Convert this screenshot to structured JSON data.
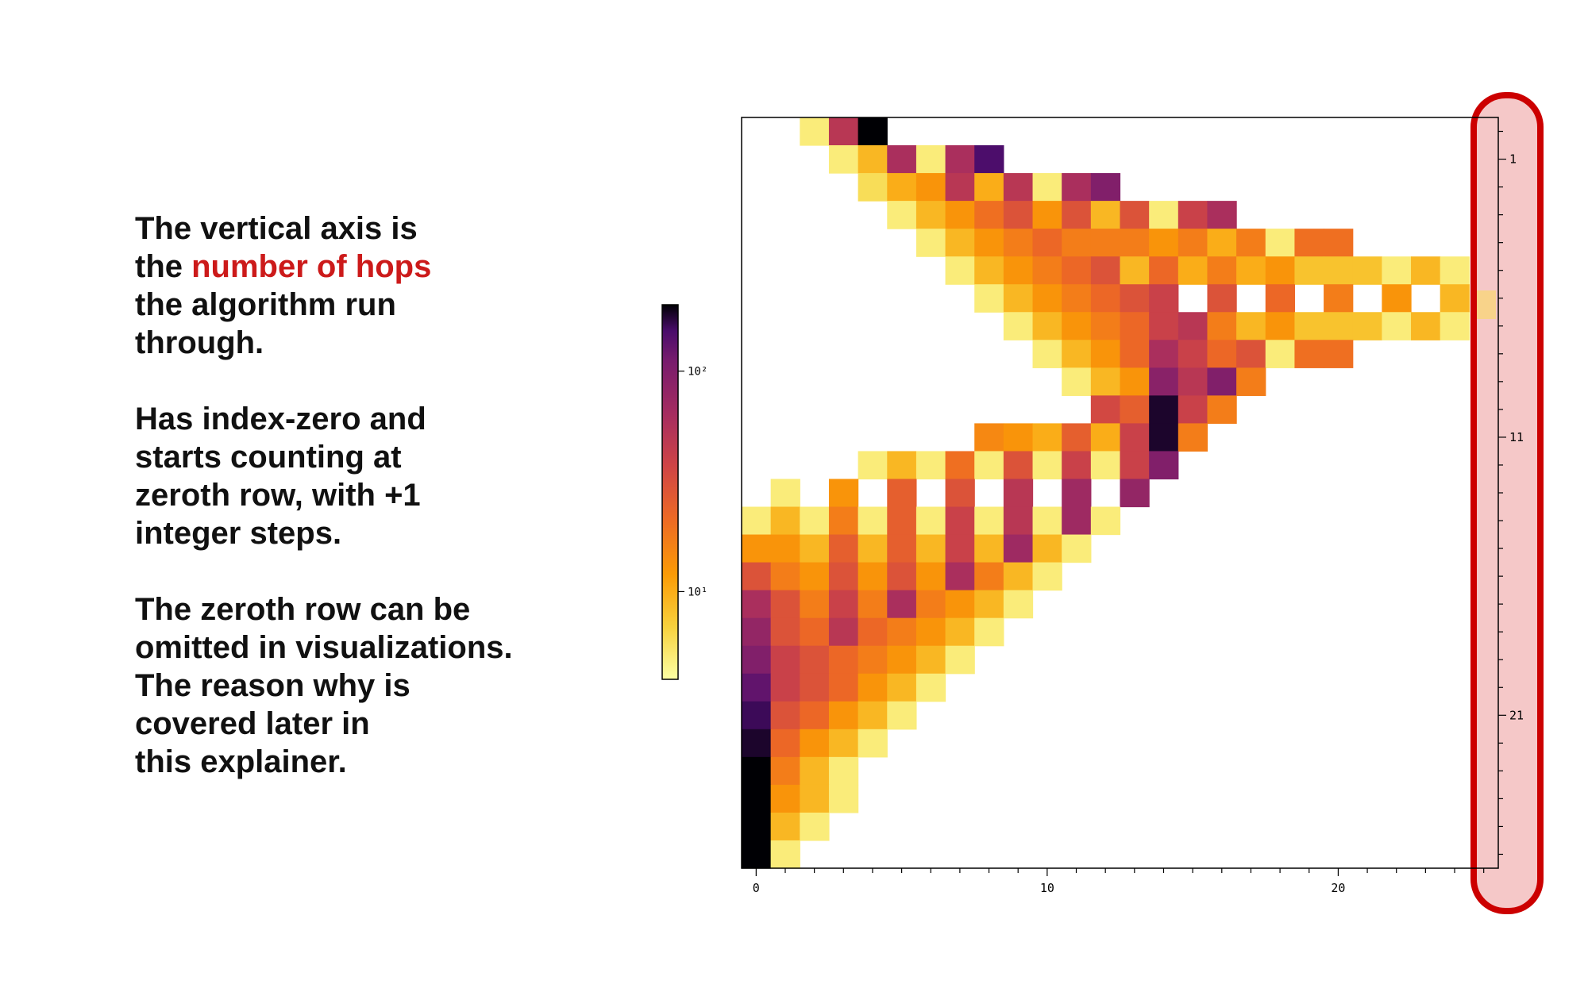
{
  "explainer": {
    "p1_a": "The vertical axis is",
    "p1_b": "the ",
    "p1_highlight": "number of hops",
    "p1_c": "the algorithm run",
    "p1_d": "through.",
    "p2_a": "Has index-zero and",
    "p2_b": "starts counting at",
    "p2_c": "zeroth row, with +1",
    "p2_d": "integer steps.",
    "p3_a": "The zeroth row can be",
    "p3_b": "omitted in visualizations.",
    "p3_c": "The reason why is",
    "p3_d": "covered later in",
    "p3_e": "this explainer.",
    "highlight_color": "#cc1a1a"
  },
  "annotation": {
    "outline_color": "#cc0000",
    "fill_color": "#f5c8c8",
    "highlighted_row": 7
  },
  "chart_data": {
    "type": "heatmap",
    "colormap": "inferno_r",
    "scale": "log",
    "xlim": [
      -0.5,
      25.5
    ],
    "ylim": [
      26.5,
      -0.5
    ],
    "x_ticks": [
      0,
      10,
      20
    ],
    "x_ticklabels": [
      "0",
      "10",
      "20"
    ],
    "y_ticks": [
      1,
      11,
      21
    ],
    "y_ticklabels": [
      "1",
      "11",
      "21"
    ],
    "y_axis_side": "right",
    "colorbar": {
      "range": [
        4,
        200
      ],
      "ticks": [
        10,
        100
      ],
      "ticklabels": [
        "10¹",
        "10²"
      ],
      "position": "left"
    },
    "rows": [
      {
        "y": 0,
        "x0": 2,
        "values": [
          5,
          50,
          200
        ]
      },
      {
        "y": 1,
        "x0": 3,
        "values": [
          5,
          9,
          60,
          5,
          60,
          150
        ]
      },
      {
        "y": 2,
        "x0": 4,
        "values": [
          6,
          10,
          13,
          50,
          10,
          50,
          5,
          60,
          100
        ]
      },
      {
        "y": 3,
        "x0": 5,
        "values": [
          5,
          9,
          13,
          20,
          30,
          13,
          30,
          9,
          30,
          5,
          40,
          60
        ]
      },
      {
        "y": 4,
        "x0": 6,
        "values": [
          5,
          9,
          13,
          17,
          22,
          17,
          17,
          17,
          13,
          17,
          10,
          17,
          5,
          20,
          20
        ]
      },
      {
        "y": 5,
        "x0": 7,
        "values": [
          5,
          9,
          13,
          17,
          22,
          30,
          9,
          22,
          10,
          17,
          10,
          13,
          8,
          8,
          8,
          5,
          9,
          5
        ]
      },
      {
        "y": 6,
        "x0": 8,
        "values": [
          5,
          9,
          13,
          17,
          22,
          30,
          40,
          null,
          30,
          null,
          22,
          null,
          17,
          null,
          13,
          null,
          9
        ]
      },
      {
        "y": 7,
        "x0": 9,
        "values": [
          5,
          9,
          13,
          17,
          22,
          40,
          50,
          17,
          9,
          13,
          8,
          8,
          8,
          5,
          9,
          5
        ]
      },
      {
        "y": 8,
        "x0": 10,
        "values": [
          5,
          9,
          13,
          22,
          60,
          40,
          22,
          30,
          5,
          20,
          20
        ]
      },
      {
        "y": 9,
        "x0": 11,
        "values": [
          5,
          9,
          13,
          90,
          50,
          100,
          17
        ]
      },
      {
        "y": 10,
        "x0": 12,
        "values": [
          35,
          25,
          180,
          40,
          17
        ]
      },
      {
        "y": 11,
        "x0": 8,
        "values": [
          15,
          13,
          10,
          25,
          10,
          40,
          180,
          17
        ]
      },
      {
        "y": 12,
        "x0": 4,
        "values": [
          5,
          9,
          5,
          20,
          5,
          30,
          5,
          40,
          5,
          40,
          100
        ]
      },
      {
        "y": 13,
        "x0": 1,
        "values": [
          5,
          null,
          13,
          null,
          25,
          null,
          30,
          null,
          50,
          null,
          70,
          null,
          80
        ]
      },
      {
        "y": 14,
        "x0": 0,
        "values": [
          5,
          9,
          5,
          17,
          5,
          25,
          5,
          40,
          5,
          50,
          5,
          70,
          5
        ]
      },
      {
        "y": 15,
        "x0": 0,
        "values": [
          13,
          13,
          9,
          25,
          9,
          25,
          9,
          40,
          9,
          70,
          9,
          5
        ]
      },
      {
        "y": 16,
        "x0": 0,
        "values": [
          30,
          17,
          13,
          30,
          13,
          30,
          13,
          60,
          17,
          9,
          5
        ]
      },
      {
        "y": 17,
        "x0": 0,
        "values": [
          60,
          30,
          17,
          40,
          17,
          60,
          17,
          13,
          9,
          5
        ]
      },
      {
        "y": 18,
        "x0": 0,
        "values": [
          80,
          30,
          22,
          50,
          22,
          17,
          13,
          9,
          5
        ]
      },
      {
        "y": 19,
        "x0": 0,
        "values": [
          100,
          40,
          30,
          22,
          17,
          13,
          9,
          5
        ]
      },
      {
        "y": 20,
        "x0": 0,
        "values": [
          130,
          40,
          30,
          22,
          13,
          9,
          5
        ]
      },
      {
        "y": 21,
        "x0": 0,
        "values": [
          160,
          30,
          22,
          13,
          9,
          5
        ]
      },
      {
        "y": 22,
        "x0": 0,
        "values": [
          180,
          22,
          13,
          9,
          5
        ]
      },
      {
        "y": 23,
        "x0": 0,
        "values": [
          200,
          17,
          9,
          5
        ]
      },
      {
        "y": 24,
        "x0": 0,
        "values": [
          200,
          13,
          9,
          5
        ]
      },
      {
        "y": 25,
        "x0": 0,
        "values": [
          200,
          9,
          5
        ]
      },
      {
        "y": 26,
        "x0": 0,
        "values": [
          200,
          5
        ]
      }
    ]
  }
}
